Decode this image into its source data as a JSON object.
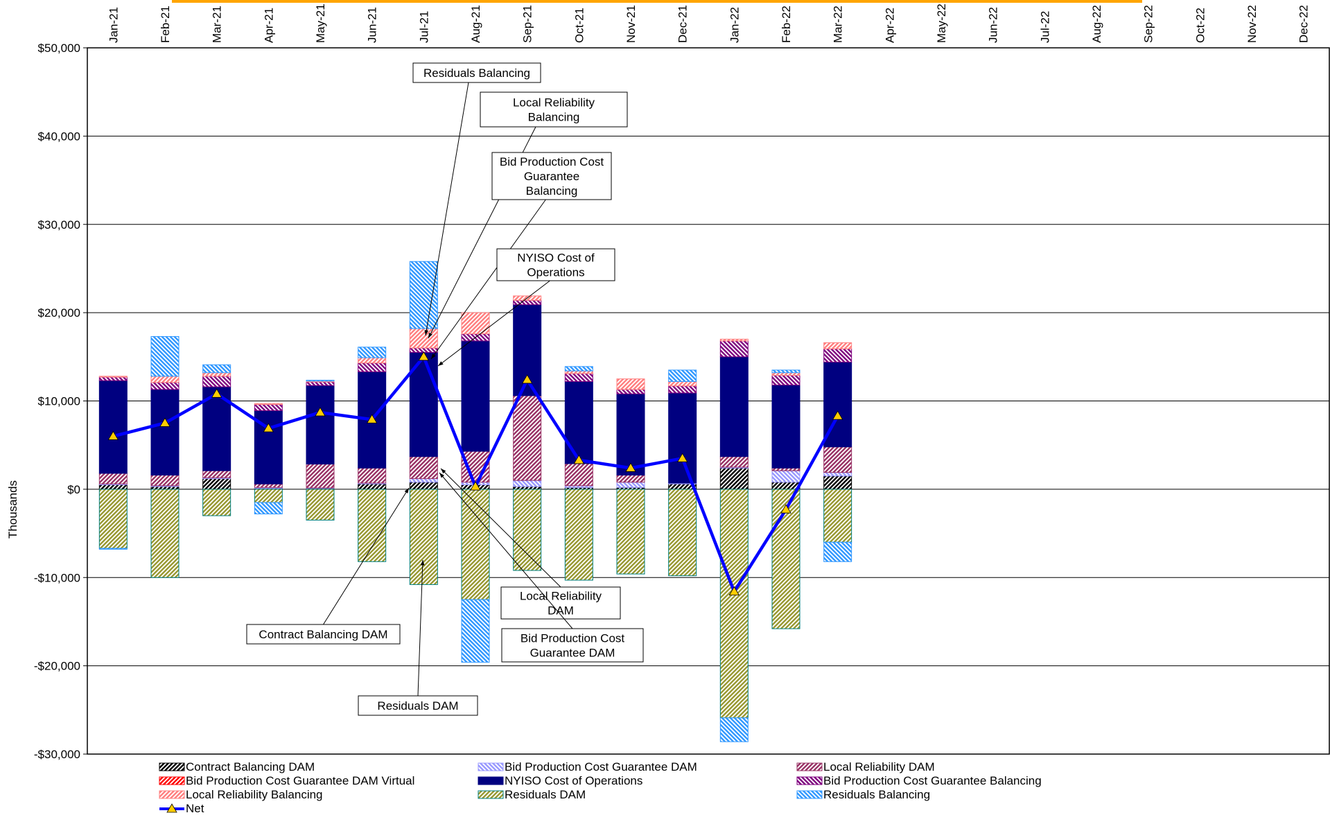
{
  "chart_data": {
    "type": "bar",
    "stacked": true,
    "ylabel": "Thousands",
    "ylim": [
      -30000,
      50000
    ],
    "yticks": [
      -30000,
      -20000,
      -10000,
      0,
      10000,
      20000,
      30000,
      40000,
      50000
    ],
    "ytick_labels": [
      "-$30,000",
      "-$20,000",
      "-$10,000",
      "$0",
      "$10,000",
      "$20,000",
      "$30,000",
      "$40,000",
      "$50,000"
    ],
    "grid": true,
    "legend_position": "bottom",
    "categories": [
      "Jan-21",
      "Feb-21",
      "Mar-21",
      "Apr-21",
      "May-21",
      "Jun-21",
      "Jul-21",
      "Aug-21",
      "Sep-21",
      "Oct-21",
      "Nov-21",
      "Dec-21",
      "Jan-22",
      "Feb-22",
      "Mar-22",
      "Apr-22",
      "May-22",
      "Jun-22",
      "Jul-22",
      "Aug-22",
      "Sep-22",
      "Oct-22",
      "Nov-22",
      "Dec-22"
    ],
    "series": [
      {
        "name": "Contract Balancing DAM",
        "color": "#000000",
        "hatch": "fwd",
        "values": [
          500,
          300,
          1200,
          100,
          100,
          600,
          800,
          500,
          300,
          200,
          200,
          600,
          2400,
          800,
          1500,
          null,
          null,
          null,
          null,
          null,
          null,
          null,
          null,
          null
        ]
      },
      {
        "name": "Bid Production Cost Guarantee DAM",
        "color": "#9999ff",
        "hatch": "back",
        "values": [
          100,
          100,
          100,
          100,
          50,
          100,
          400,
          300,
          700,
          200,
          600,
          100,
          100,
          1300,
          400,
          null,
          null,
          null,
          null,
          null,
          null,
          null,
          null,
          null
        ]
      },
      {
        "name": "Local Reliability DAM",
        "color": "#993366",
        "hatch": "fwd",
        "values": [
          1200,
          1200,
          800,
          400,
          2700,
          1700,
          2500,
          3500,
          9600,
          2500,
          800,
          0,
          1200,
          300,
          2900,
          null,
          null,
          null,
          null,
          null,
          null,
          null,
          null,
          null
        ]
      },
      {
        "name": "Bid Production Cost Guarantee DAM Virtual",
        "color": "#ff0000",
        "hatch": "fwd",
        "values": [
          0,
          0,
          0,
          0,
          0,
          0,
          0,
          0,
          0,
          0,
          0,
          0,
          0,
          0,
          0,
          null,
          null,
          null,
          null,
          null,
          null,
          null,
          null,
          null
        ]
      },
      {
        "name": "NYISO Cost of Operations",
        "color": "#000080",
        "hatch": "none",
        "values": [
          10500,
          9700,
          9500,
          8300,
          8900,
          10900,
          11800,
          12500,
          10300,
          9300,
          9200,
          10200,
          11300,
          9400,
          9600,
          null,
          null,
          null,
          null,
          null,
          null,
          null,
          null,
          null
        ]
      },
      {
        "name": "Bid Production Cost Guarantee Balancing",
        "color": "#800080",
        "hatch": "back",
        "values": [
          400,
          800,
          1200,
          700,
          400,
          1000,
          500,
          800,
          500,
          900,
          500,
          800,
          1800,
          1100,
          1500,
          null,
          null,
          null,
          null,
          null,
          null,
          null,
          null,
          null
        ]
      },
      {
        "name": "Local Reliability Balancing",
        "color": "#ff8080",
        "hatch": "fwd",
        "values": [
          100,
          700,
          400,
          100,
          100,
          600,
          2200,
          2400,
          500,
          300,
          1200,
          500,
          200,
          300,
          700,
          null,
          null,
          null,
          null,
          null,
          null,
          null,
          null,
          null
        ]
      },
      {
        "name": "Residuals DAM",
        "color": "#999933",
        "hatch": "fwd",
        "edge": "#008080",
        "values": [
          -6700,
          -10000,
          -3000,
          -1500,
          -3500,
          -8200,
          -10800,
          -12500,
          -9200,
          -10300,
          -9600,
          -9800,
          -25900,
          -15800,
          -6000,
          null,
          null,
          null,
          null,
          null,
          null,
          null,
          null,
          null
        ]
      },
      {
        "name": "Residuals Balancing",
        "color": "#3399ff",
        "hatch": "back",
        "values": [
          -100,
          4500,
          900,
          -1300,
          100,
          1200,
          7600,
          -7100,
          0,
          500,
          0,
          1300,
          -2700,
          300,
          -2200,
          null,
          null,
          null,
          null,
          null,
          null,
          null,
          null,
          null
        ]
      }
    ],
    "line_series": {
      "name": "Net",
      "color": "#0000ff",
      "marker_color": "#ffcc00",
      "values": [
        6000,
        7500,
        10800,
        6900,
        8700,
        7900,
        15000,
        300,
        12400,
        3300,
        2400,
        3500,
        -11600,
        -2300,
        8300,
        null,
        null,
        null,
        null,
        null,
        null,
        null,
        null,
        null
      ]
    },
    "annotations": [
      {
        "text": [
          "Residuals Balancing"
        ]
      },
      {
        "text": [
          "Local Reliability",
          "Balancing"
        ]
      },
      {
        "text": [
          "Bid Production Cost",
          "Guarantee",
          "Balancing"
        ]
      },
      {
        "text": [
          "NYISO Cost of",
          "Operations"
        ]
      },
      {
        "text": [
          "Local Reliability",
          "DAM"
        ]
      },
      {
        "text": [
          "Bid Production Cost",
          "Guarantee DAM"
        ]
      },
      {
        "text": [
          "Contract Balancing DAM"
        ]
      },
      {
        "text": [
          "Residuals DAM"
        ]
      }
    ],
    "colors": {
      "gridline": "#000000",
      "net_line": "#0000ff",
      "title_bar": "#ffa500"
    }
  }
}
